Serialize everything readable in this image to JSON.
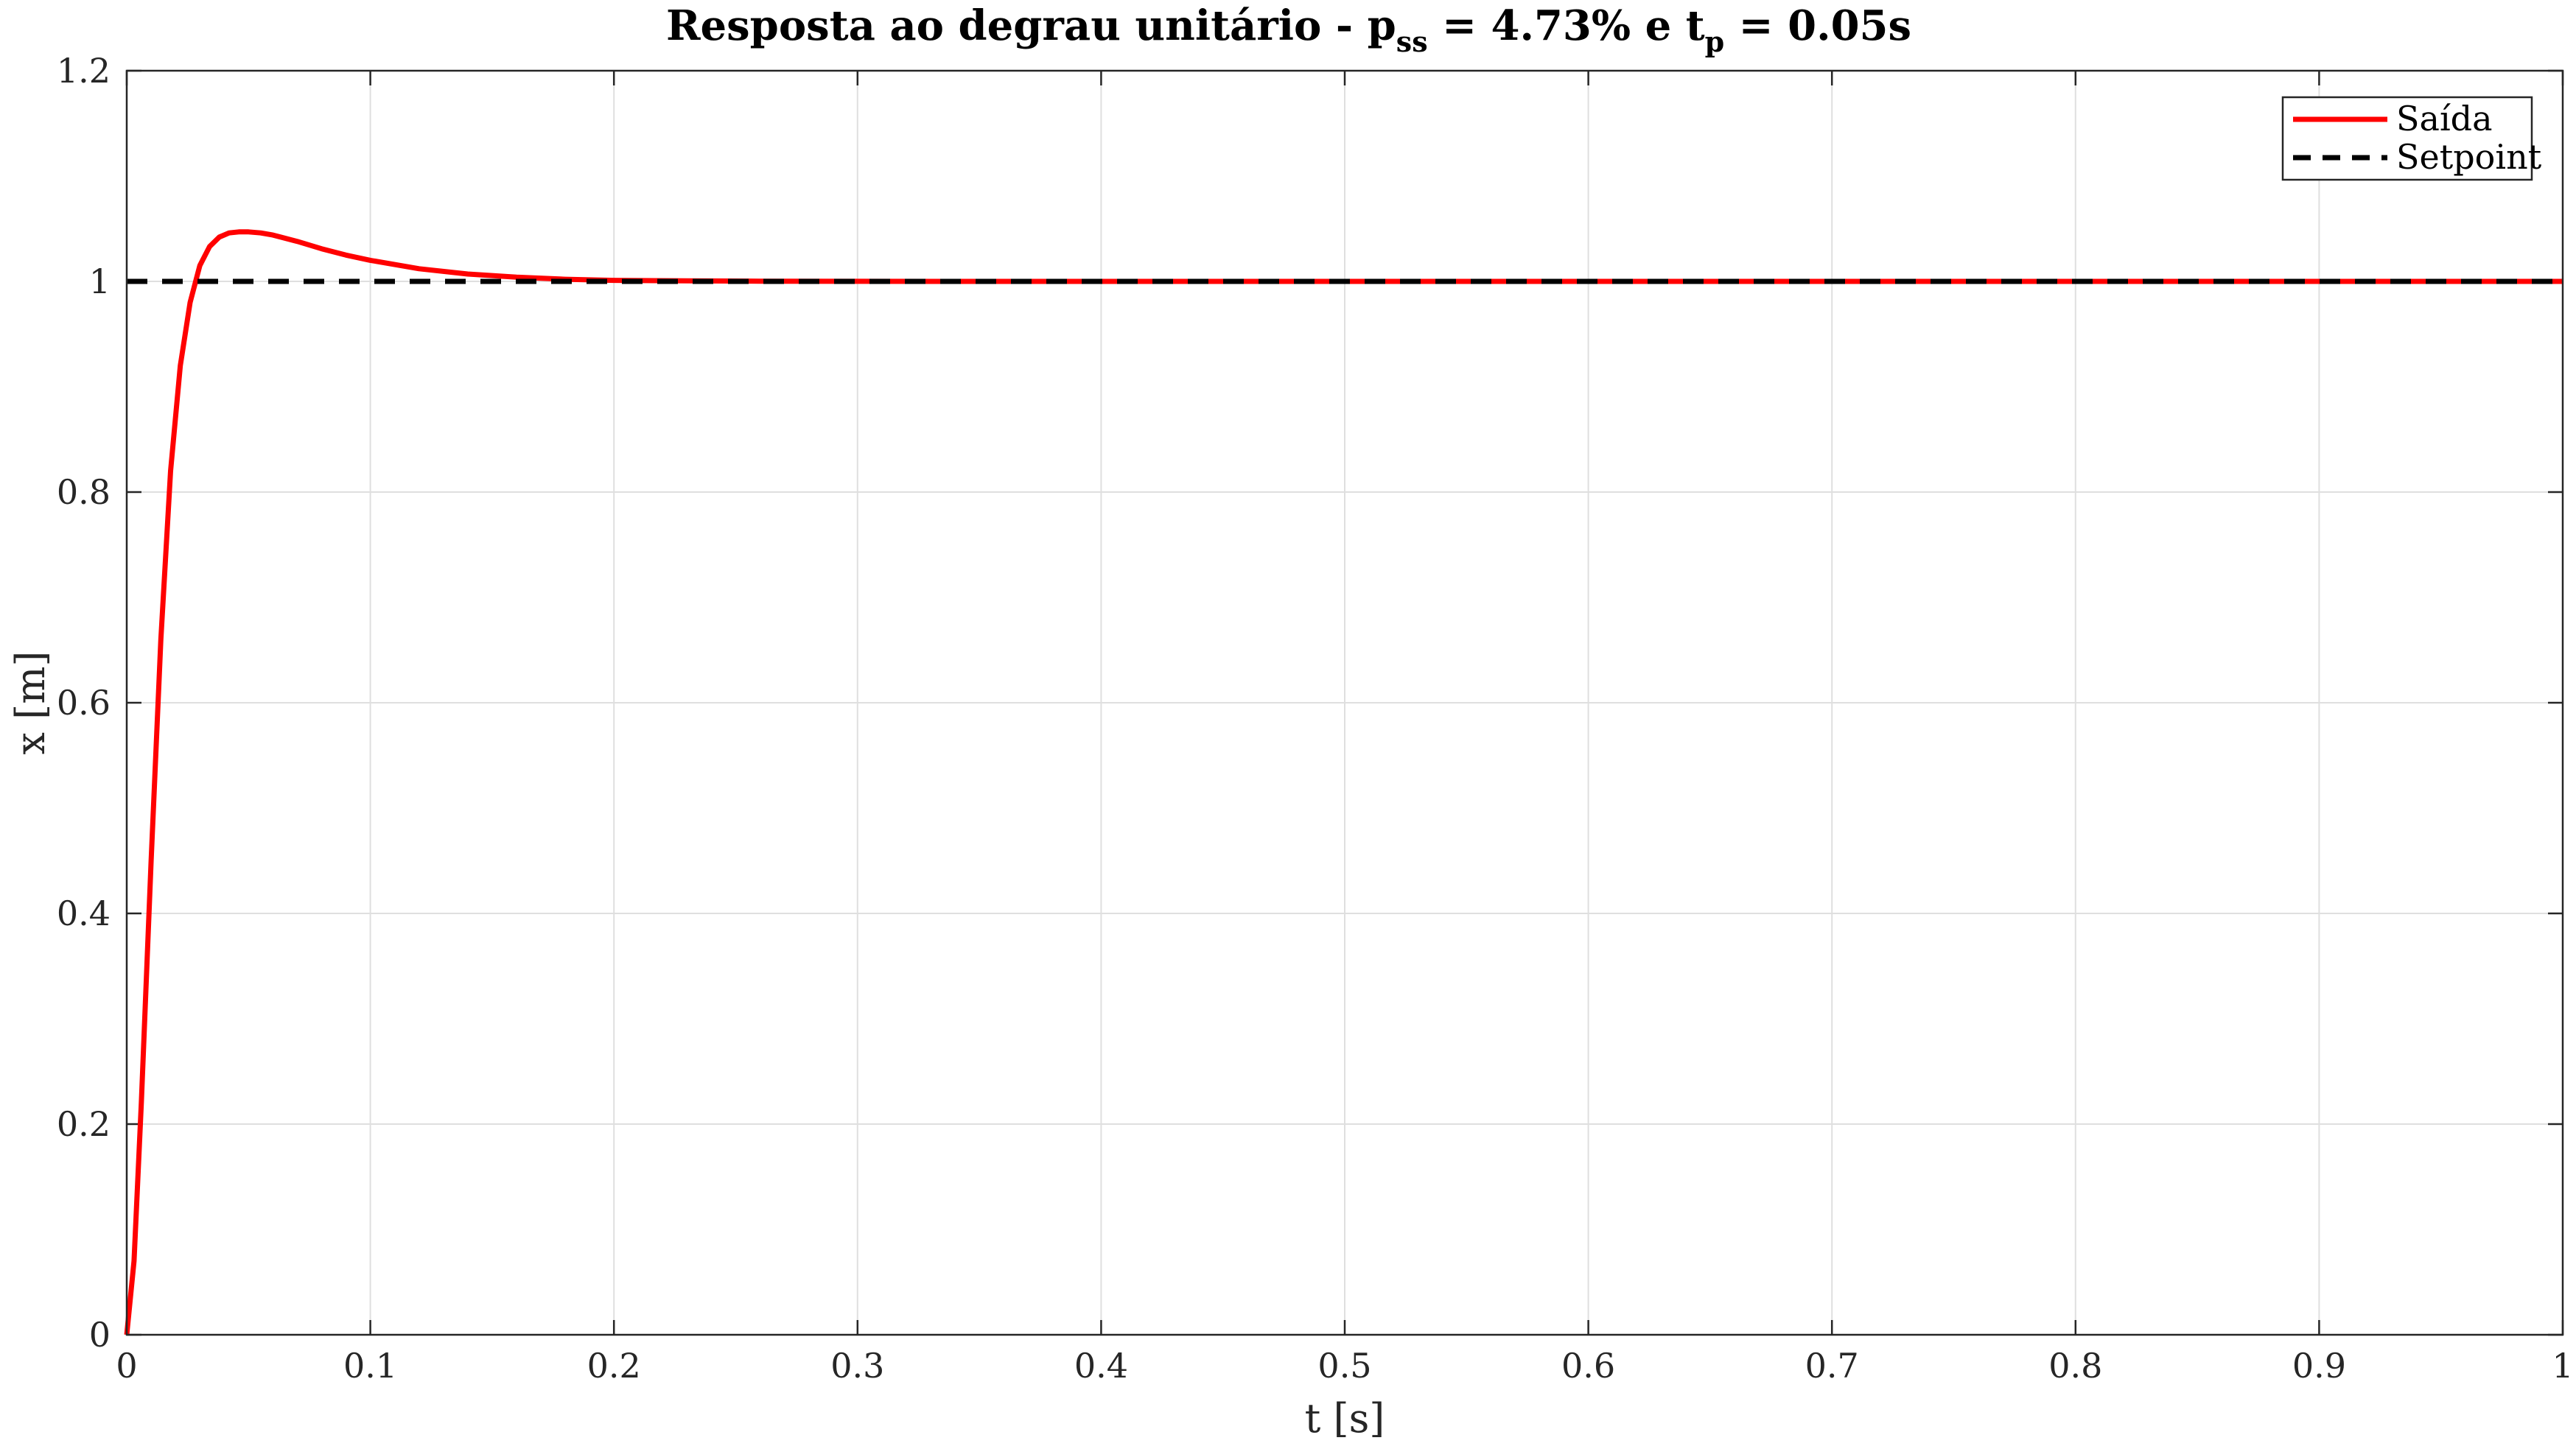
{
  "chart_data": {
    "type": "line",
    "title": {
      "main": "Resposta ao degrau unitário - p",
      "sub1": "ss",
      "mid": " = 4.73% e t",
      "sub2": "p",
      "end": " = 0.05s"
    },
    "xlabel": "t [s]",
    "ylabel": "x [m]",
    "xlim": [
      0,
      1
    ],
    "ylim": [
      0,
      1.2
    ],
    "xticks": [
      0,
      0.1,
      0.2,
      0.3,
      0.4,
      0.5,
      0.6,
      0.7,
      0.8,
      0.9,
      1
    ],
    "xtick_labels": [
      "0",
      "0.1",
      "0.2",
      "0.3",
      "0.4",
      "0.5",
      "0.6",
      "0.7",
      "0.8",
      "0.9",
      "1"
    ],
    "yticks": [
      0,
      0.2,
      0.4,
      0.6,
      0.8,
      1,
      1.2
    ],
    "ytick_labels": [
      "0",
      "0.2",
      "0.4",
      "0.6",
      "0.8",
      "1",
      "1.2"
    ],
    "grid": true,
    "legend_position": "top-right",
    "series": [
      {
        "name": "Saída",
        "color": "#ff0000",
        "style": "solid",
        "x": [
          0,
          0.003,
          0.006,
          0.01,
          0.014,
          0.018,
          0.022,
          0.026,
          0.03,
          0.034,
          0.038,
          0.042,
          0.046,
          0.05,
          0.055,
          0.06,
          0.07,
          0.08,
          0.09,
          0.1,
          0.12,
          0.14,
          0.16,
          0.18,
          0.2,
          0.23,
          0.26,
          0.3,
          0.35,
          0.4,
          0.5,
          0.6,
          0.7,
          0.8,
          0.9,
          1
        ],
        "y": [
          0,
          0.07,
          0.22,
          0.45,
          0.66,
          0.82,
          0.92,
          0.98,
          1.015,
          1.033,
          1.042,
          1.046,
          1.047,
          1.047,
          1.046,
          1.044,
          1.038,
          1.031,
          1.025,
          1.02,
          1.012,
          1.007,
          1.004,
          1.002,
          1.001,
          1.0005,
          1.0002,
          1.0001,
          1,
          1,
          1,
          1,
          1,
          1,
          1,
          1
        ]
      },
      {
        "name": "Setpoint",
        "color": "#000000",
        "style": "dashed",
        "x": [
          0,
          1
        ],
        "y": [
          1,
          1
        ]
      }
    ]
  }
}
